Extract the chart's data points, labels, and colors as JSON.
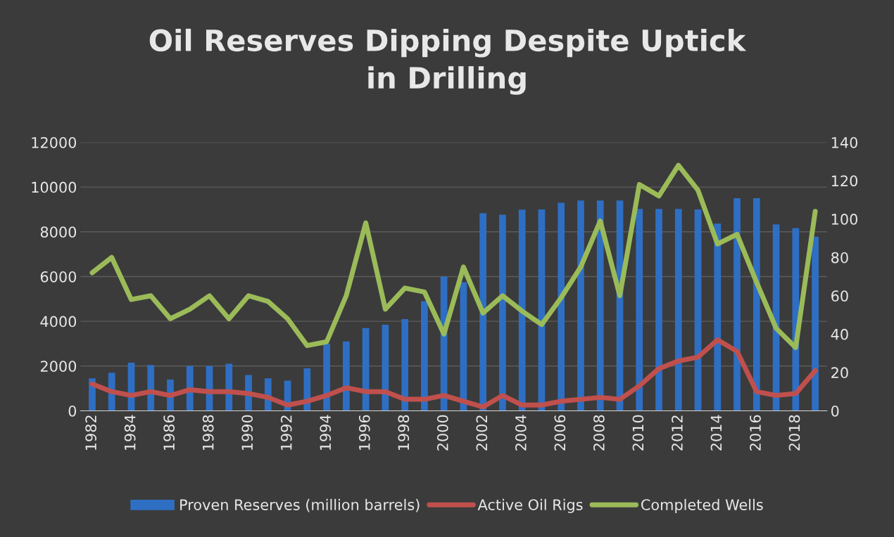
{
  "chart_data": {
    "type": "bar",
    "title": "Oil Reserves Dipping Despite Uptick\nin Drilling",
    "categories": [
      "1982",
      null,
      "1984",
      null,
      "1986",
      null,
      "1988",
      null,
      "1990",
      null,
      "1992",
      null,
      "1994",
      null,
      "1996",
      null,
      "1998",
      null,
      "2000",
      null,
      "2002",
      null,
      "2004",
      null,
      "2006",
      null,
      "2008",
      null,
      "2010",
      null,
      "2012",
      null,
      "2014",
      null,
      "2016",
      null,
      "2018",
      null
    ],
    "series": [
      {
        "name": "Proven Reserves (million barrels)",
        "color": "#2e6fc4",
        "values": [
          1450,
          1700,
          2150,
          2050,
          1400,
          2000,
          2000,
          2100,
          1600,
          1450,
          1350,
          1900,
          3000,
          3100,
          3700,
          3850,
          4100,
          4900,
          6000,
          5750,
          8830,
          8760,
          8990,
          9000,
          9300,
          9400,
          9400,
          9400,
          9020,
          9020,
          9020,
          9000,
          8370,
          9500,
          9500,
          8330,
          8170,
          7780
        ]
      },
      {
        "name": "Active Oil Rigs",
        "type": "line",
        "axis": "y2",
        "color": "#c0504d",
        "values": [
          14,
          10,
          8,
          10,
          8,
          11,
          10,
          10,
          9,
          7,
          3,
          5,
          8,
          12,
          10,
          10,
          6,
          6,
          8,
          5,
          2,
          8,
          3,
          3,
          5,
          6,
          7,
          6,
          13,
          22,
          26,
          28,
          37,
          31,
          10,
          8,
          9,
          21
        ]
      },
      {
        "name": "Completed Wells",
        "type": "line",
        "axis": "y2",
        "color": "#9bbb59",
        "values": [
          72,
          80,
          58,
          60,
          48,
          53,
          60,
          48,
          60,
          57,
          48,
          34,
          36,
          60,
          98,
          53,
          64,
          62,
          40,
          75,
          51,
          60,
          52,
          45,
          59,
          75,
          99,
          60,
          118,
          112,
          128,
          115,
          87,
          92,
          67,
          43,
          33,
          104
        ]
      }
    ],
    "ylim": [
      0,
      12000
    ],
    "yticks": [
      0,
      2000,
      4000,
      6000,
      8000,
      10000,
      12000
    ],
    "y2lim": [
      0,
      140
    ],
    "y2ticks": [
      0,
      20,
      40,
      60,
      80,
      100,
      120,
      140
    ],
    "grid": "y",
    "legend": "bottom"
  }
}
